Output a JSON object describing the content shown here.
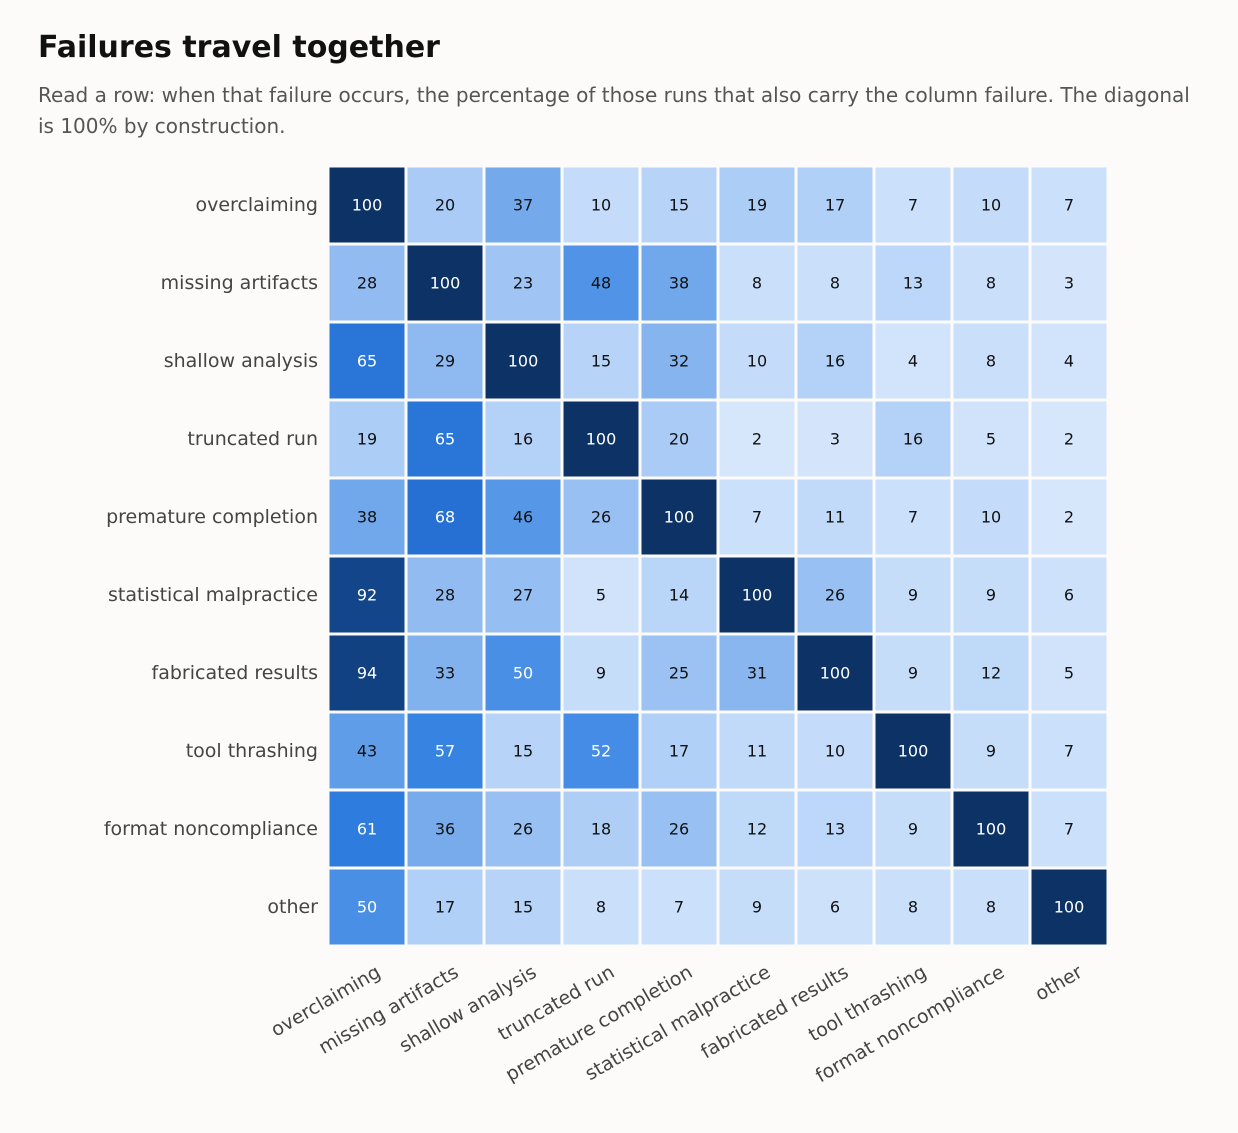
{
  "chart_data": {
    "type": "heatmap",
    "title": "Failures travel together",
    "subtitle": "Read a row: when that failure occurs, the percentage of those runs that also carry the column failure. The diagonal is 100% by construction.",
    "rows": [
      "overclaiming",
      "missing artifacts",
      "shallow analysis",
      "truncated run",
      "premature completion",
      "statistical malpractice",
      "fabricated results",
      "tool thrashing",
      "format noncompliance",
      "other"
    ],
    "columns": [
      "overclaiming",
      "missing artifacts",
      "shallow analysis",
      "truncated run",
      "premature completion",
      "statistical malpractice",
      "fabricated results",
      "tool thrashing",
      "format noncompliance",
      "other"
    ],
    "values": [
      [
        100,
        20,
        37,
        10,
        15,
        19,
        17,
        7,
        10,
        7
      ],
      [
        28,
        100,
        23,
        48,
        38,
        8,
        8,
        13,
        8,
        3
      ],
      [
        65,
        29,
        100,
        15,
        32,
        10,
        16,
        4,
        8,
        4
      ],
      [
        19,
        65,
        16,
        100,
        20,
        2,
        3,
        16,
        5,
        2
      ],
      [
        38,
        68,
        46,
        26,
        100,
        7,
        11,
        7,
        10,
        2
      ],
      [
        92,
        28,
        27,
        5,
        14,
        100,
        26,
        9,
        9,
        6
      ],
      [
        94,
        33,
        50,
        9,
        25,
        31,
        100,
        9,
        12,
        5
      ],
      [
        43,
        57,
        15,
        52,
        17,
        11,
        10,
        100,
        9,
        7
      ],
      [
        61,
        36,
        26,
        18,
        26,
        12,
        13,
        9,
        100,
        7
      ],
      [
        50,
        17,
        15,
        8,
        7,
        9,
        6,
        8,
        8,
        100
      ]
    ],
    "color_scale": {
      "min": 0,
      "max": 100,
      "colors": [
        "#dbe9fb",
        "#c4dcfa",
        "#a9cbf5",
        "#8cb8f0",
        "#6aa3ea",
        "#4a8fe6",
        "#2e7ee0",
        "#246cd0",
        "#1a5bb5",
        "#134a93",
        "#0d3366"
      ]
    },
    "legend": "none"
  }
}
